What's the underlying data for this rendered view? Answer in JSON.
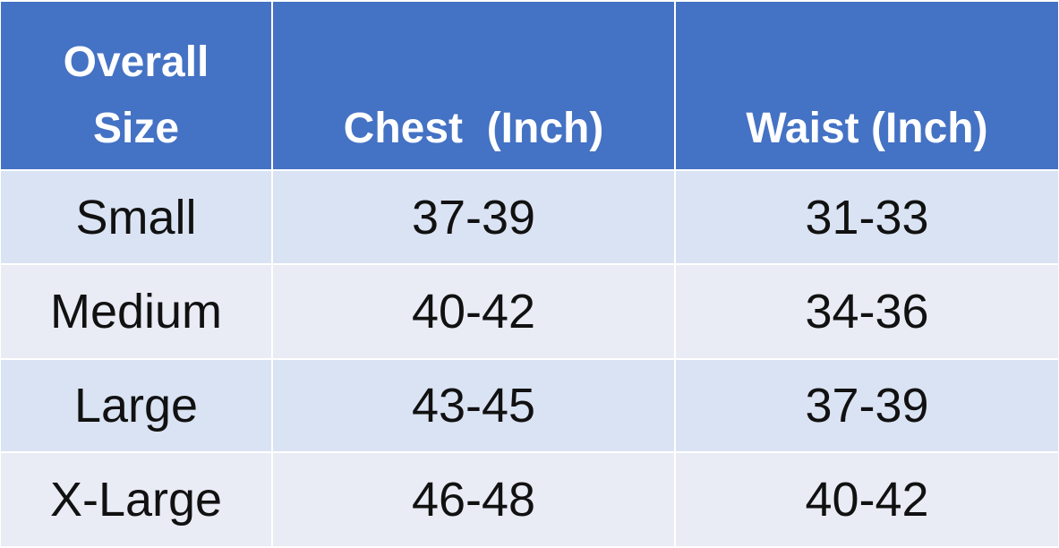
{
  "table": {
    "header": [
      "Overall Size",
      "Chest  (Inch)",
      "Waist (Inch)"
    ],
    "rows": [
      [
        "Small",
        "37-39",
        "31-33"
      ],
      [
        "Medium",
        "40-42",
        "34-36"
      ],
      [
        "Large",
        "43-45",
        "37-39"
      ],
      [
        "X-Large",
        "46-48",
        "40-42"
      ]
    ]
  }
}
